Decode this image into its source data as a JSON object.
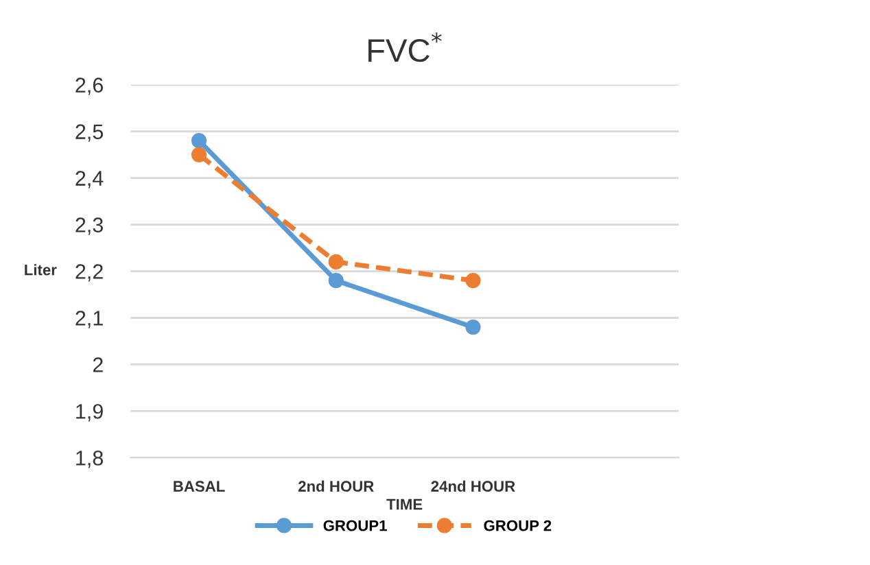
{
  "chart_data": {
    "type": "line",
    "title": "FVC$^{*}$",
    "xlabel": "TIME",
    "ylabel": "Liter",
    "categories": [
      "BASAL",
      "2nd HOUR",
      "24nd HOUR",
      null
    ],
    "series": [
      {
        "name": "GROUP1",
        "color": "#5b9bd5",
        "values": [
          2.48,
          2.18,
          2.08,
          null
        ],
        "line_style": "solid"
      },
      {
        "name": "GROUP 2",
        "color": "#ed7d31",
        "values": [
          2.45,
          2.22,
          2.18,
          null
        ],
        "line_style": "dashed"
      }
    ],
    "ylim": [
      1.8,
      2.6
    ],
    "yticks": [
      {
        "value": 1.8,
        "label": "1,8"
      },
      {
        "value": 1.9,
        "label": "1,9"
      },
      {
        "value": 2,
        "label": "2"
      },
      {
        "value": 2.1,
        "label": "2,1"
      },
      {
        "value": 2.2,
        "label": "2,2"
      },
      {
        "value": 2.3,
        "label": "2,3"
      },
      {
        "value": 2.4,
        "label": "2,4"
      },
      {
        "value": 2.5,
        "label": "2,5"
      },
      {
        "value": 2.6,
        "label": "2,6"
      }
    ],
    "grid": "y",
    "legend": "bottom",
    "marker": "circle"
  }
}
